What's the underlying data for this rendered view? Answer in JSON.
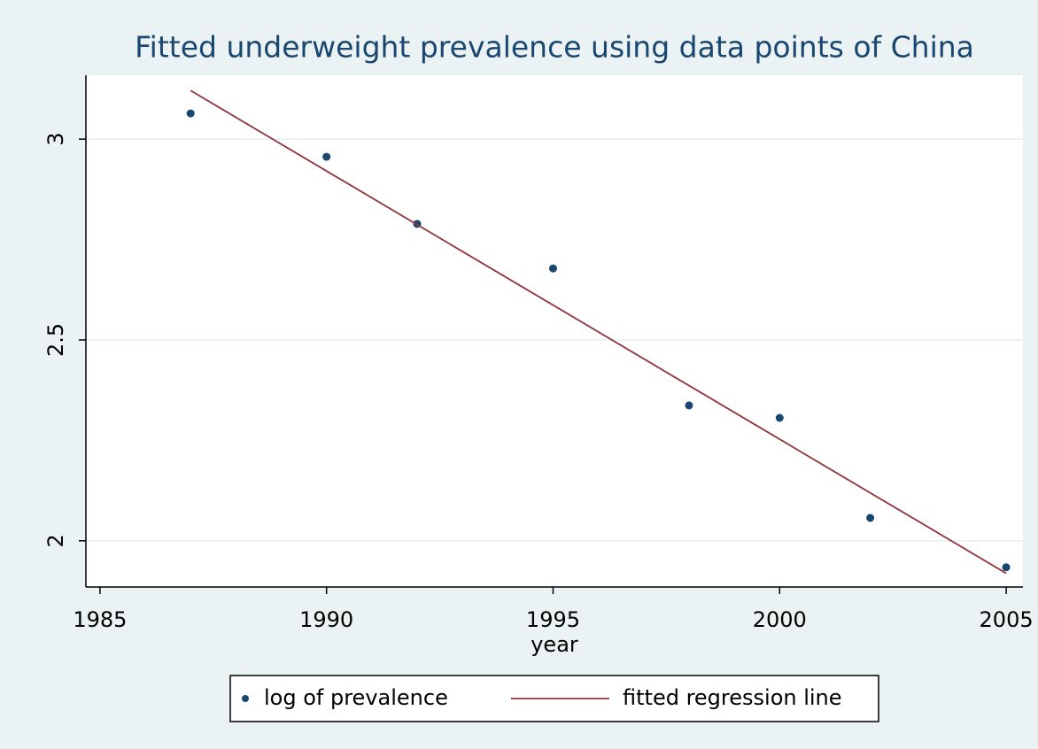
{
  "chart_data": {
    "type": "scatter",
    "title": "Fitted underweight prevalence using data points of China",
    "xlabel": "year",
    "xlim": [
      1984.69,
      2005.37
    ],
    "xticks": [
      1985,
      1990,
      1995,
      2000,
      2005
    ],
    "ylim": [
      1.885,
      3.159
    ],
    "yticks": [
      {
        "value": 2,
        "label": "2"
      },
      {
        "value": 2.5,
        "label": "2.5"
      },
      {
        "value": 3,
        "label": "3"
      }
    ],
    "grid": true,
    "legend": "bottom",
    "series": [
      {
        "name": "log of prevalence",
        "type": "scatter",
        "color": "#1a476f",
        "x": [
          1987,
          1990,
          1992,
          1995,
          1998,
          2000,
          2002,
          2005
        ],
        "values": [
          3.064,
          2.956,
          2.789,
          2.678,
          2.337,
          2.306,
          2.057,
          1.934
        ]
      },
      {
        "name": "fitted regression line",
        "type": "line",
        "color": "#90353b",
        "x": [
          1987,
          2005
        ],
        "values": [
          3.121,
          1.919
        ]
      }
    ]
  }
}
